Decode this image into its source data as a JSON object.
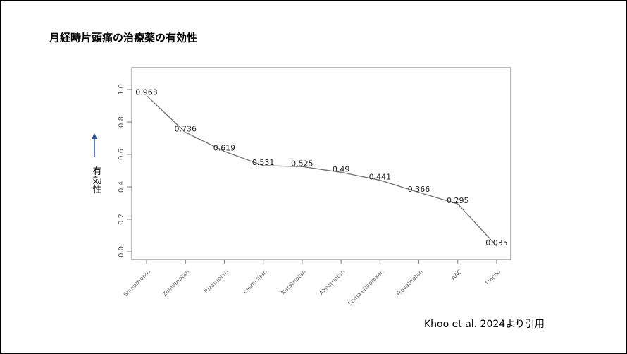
{
  "chart_data": {
    "type": "line",
    "title": "月経時片頭痛の治療薬の有効性",
    "y_label": "有効性",
    "source": "Khoo et al. 2024より引用",
    "categories": [
      "Sumatriptan",
      "Zolmitriptan",
      "Rizatriptan",
      "Lasmiditan",
      "Naratriptan",
      "Almotriptan",
      "Suma+Naproxen",
      "Frovatriptan",
      "AAC",
      "Placbo"
    ],
    "values": [
      0.963,
      0.736,
      0.619,
      0.531,
      0.525,
      0.49,
      0.441,
      0.366,
      0.295,
      0.035
    ],
    "color": "#707070",
    "ylim": [
      -0.048,
      1.135
    ],
    "yticks": [
      {
        "value": 0,
        "label": "0.0"
      },
      {
        "value": 0.2,
        "label": "0.2"
      },
      {
        "value": 0.4,
        "label": "0.4"
      },
      {
        "value": 0.6,
        "label": "0.6"
      },
      {
        "value": 0.8,
        "label": "0.8"
      },
      {
        "value": 1,
        "label": "1.0"
      }
    ]
  }
}
